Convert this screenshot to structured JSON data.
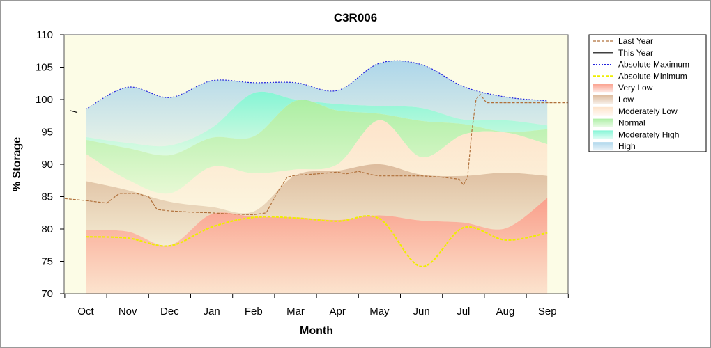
{
  "chart_data": {
    "type": "area",
    "title": "C3R006",
    "xlabel": "Month",
    "ylabel": "% Storage",
    "ylim": [
      70,
      110
    ],
    "yticks": [
      70,
      75,
      80,
      85,
      90,
      95,
      100,
      105,
      110
    ],
    "categories": [
      "Oct",
      "Nov",
      "Dec",
      "Jan",
      "Feb",
      "Mar",
      "Apr",
      "May",
      "Jun",
      "Jul",
      "Aug",
      "Sep"
    ],
    "legend_position": "right",
    "bands": [
      {
        "name": "High",
        "color": "#a9d4ea",
        "lower": [
          94.2,
          93.3,
          92.9,
          95.6,
          101.0,
          100.0,
          99.3,
          99.0,
          98.7,
          96.9,
          96.8,
          96.0
        ],
        "upper": [
          98.5,
          101.9,
          100.3,
          102.9,
          102.6,
          102.6,
          101.4,
          105.6,
          105.4,
          102.0,
          100.4,
          99.8
        ]
      },
      {
        "name": "Moderately High",
        "color": "#7ff5d4",
        "lower": [
          93.8,
          92.5,
          91.4,
          94.1,
          94.3,
          99.8,
          98.3,
          97.8,
          96.7,
          96.2,
          95.0,
          95.4
        ],
        "upper": [
          94.2,
          93.3,
          92.9,
          95.6,
          101.0,
          100.0,
          99.3,
          99.0,
          98.7,
          96.9,
          96.8,
          96.0
        ]
      },
      {
        "name": "Normal",
        "color": "#a8eea0",
        "lower": [
          91.6,
          87.6,
          85.5,
          89.6,
          88.6,
          89.2,
          90.0,
          96.8,
          91.1,
          94.6,
          94.9,
          93.1
        ],
        "upper": [
          93.8,
          92.5,
          91.4,
          94.1,
          94.3,
          99.8,
          98.3,
          97.8,
          96.7,
          96.2,
          95.0,
          95.4
        ]
      },
      {
        "name": "Moderately Low",
        "color": "#fde2c9",
        "lower": [
          87.4,
          86.0,
          84.2,
          83.4,
          82.7,
          88.3,
          89.0,
          90.0,
          88.4,
          88.2,
          88.7,
          88.2
        ],
        "upper": [
          91.6,
          87.6,
          85.5,
          89.6,
          88.6,
          89.2,
          90.0,
          96.8,
          91.1,
          94.6,
          94.9,
          93.1
        ]
      },
      {
        "name": "Low",
        "color": "#dcb99a",
        "lower": [
          79.8,
          79.6,
          77.5,
          82.3,
          81.9,
          81.8,
          81.4,
          82.1,
          81.3,
          81.0,
          80.1,
          84.8
        ],
        "upper": [
          87.4,
          86.0,
          84.2,
          83.4,
          82.7,
          88.3,
          89.0,
          90.0,
          88.4,
          88.2,
          88.7,
          88.2
        ]
      },
      {
        "name": "Very Low",
        "color": "#fa9a86",
        "lower": [
          70,
          70,
          70,
          70,
          70,
          70,
          70,
          70,
          70,
          70,
          70,
          70
        ],
        "upper": [
          79.8,
          79.6,
          77.5,
          82.3,
          81.9,
          81.8,
          81.4,
          82.1,
          81.3,
          81.0,
          80.1,
          84.8
        ]
      }
    ],
    "lines": [
      {
        "name": "Last Year",
        "color": "#b0703a",
        "style": "dashed",
        "points": [
          [
            -0.5,
            84.7
          ],
          [
            0.0,
            84.4
          ],
          [
            0.5,
            84.0
          ],
          [
            0.8,
            85.5
          ],
          [
            1.2,
            85.5
          ],
          [
            1.5,
            85.0
          ],
          [
            1.7,
            83.0
          ],
          [
            2.0,
            82.8
          ],
          [
            2.5,
            82.6
          ],
          [
            3.0,
            82.5
          ],
          [
            3.5,
            82.3
          ],
          [
            4.0,
            82.2
          ],
          [
            4.3,
            82.5
          ],
          [
            4.6,
            86.0
          ],
          [
            4.8,
            88.0
          ],
          [
            5.0,
            88.3
          ],
          [
            5.5,
            88.5
          ],
          [
            6.0,
            88.8
          ],
          [
            6.2,
            88.5
          ],
          [
            6.5,
            88.9
          ],
          [
            6.8,
            88.4
          ],
          [
            7.0,
            88.2
          ],
          [
            8.0,
            88.2
          ],
          [
            8.5,
            88.0
          ],
          [
            8.9,
            87.7
          ],
          [
            9.0,
            86.8
          ],
          [
            9.1,
            88.0
          ],
          [
            9.2,
            95.0
          ],
          [
            9.3,
            100.0
          ],
          [
            9.4,
            100.8
          ],
          [
            9.55,
            99.5
          ],
          [
            10.0,
            99.5
          ],
          [
            11.0,
            99.5
          ],
          [
            11.5,
            99.5
          ]
        ]
      },
      {
        "name": "This Year",
        "color": "#000000",
        "style": "solid",
        "points": [
          [
            -0.38,
            98.3
          ],
          [
            -0.2,
            98.0
          ]
        ]
      },
      {
        "name": "Absolute Maximum",
        "color": "#2222dd",
        "style": "dotted",
        "points": [
          [
            0,
            98.5
          ],
          [
            1,
            101.9
          ],
          [
            2,
            100.3
          ],
          [
            3,
            102.9
          ],
          [
            4,
            102.6
          ],
          [
            5,
            102.6
          ],
          [
            6,
            101.4
          ],
          [
            7,
            105.6
          ],
          [
            8,
            105.4
          ],
          [
            9,
            102.0
          ],
          [
            10,
            100.4
          ],
          [
            11,
            99.8
          ]
        ]
      },
      {
        "name": "Absolute Minimum",
        "color": "#eeee00",
        "style": "dashed",
        "points": [
          [
            0,
            78.8
          ],
          [
            1,
            78.6
          ],
          [
            2,
            77.4
          ],
          [
            3,
            80.3
          ],
          [
            4,
            81.8
          ],
          [
            5,
            81.7
          ],
          [
            6,
            81.2
          ],
          [
            7,
            81.6
          ],
          [
            8,
            74.2
          ],
          [
            9,
            80.2
          ],
          [
            10,
            78.3
          ],
          [
            11,
            79.4
          ]
        ]
      }
    ],
    "legend": [
      "Last Year",
      "This Year",
      "Absolute Maximum",
      "Absolute Minimum",
      "Very Low",
      "Low",
      "Moderately Low",
      "Normal",
      "Moderately High",
      "High"
    ]
  }
}
